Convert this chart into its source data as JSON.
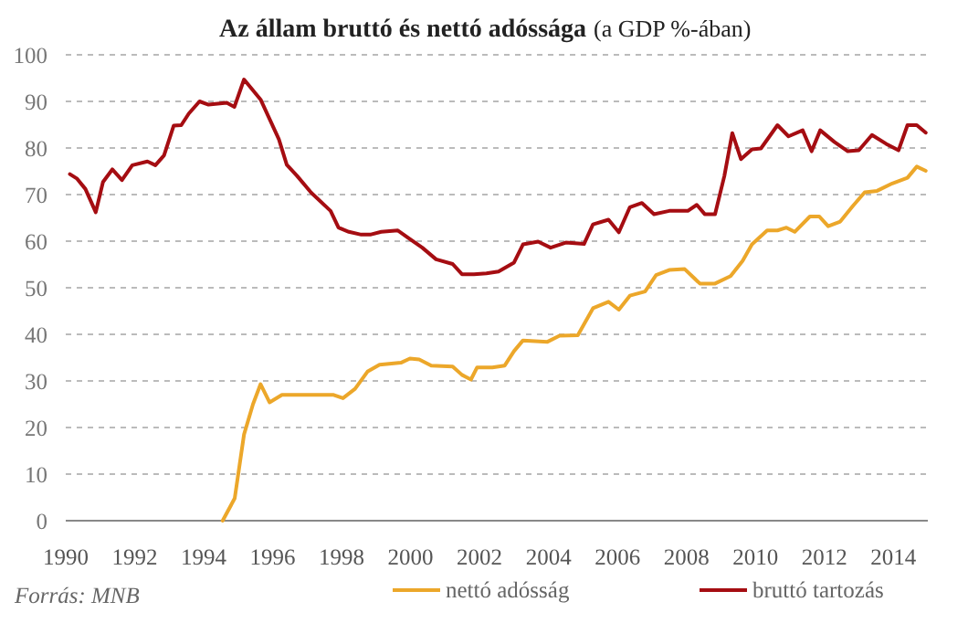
{
  "chart_data": {
    "type": "line",
    "title": "Az állam bruttó és nettó adóssága",
    "subtitle": "(a GDP %-ában)",
    "annotations": [
      "Forrás: MNB"
    ],
    "xlim": [
      1990,
      2015
    ],
    "xticks": [
      1990,
      1992,
      1994,
      1996,
      1998,
      2000,
      2002,
      2004,
      2006,
      2008,
      2010,
      2012,
      2014
    ],
    "ylim": [
      0,
      100
    ],
    "yticks": [
      0,
      10,
      20,
      30,
      40,
      50,
      60,
      70,
      80,
      90,
      100
    ],
    "grid": "y",
    "legend": "bottom",
    "line_style": "solid",
    "marker": "none",
    "series": [
      {
        "name": "nettó adósság",
        "color": "#eca72a",
        "x": [
          1994.55,
          1994.9,
          1995.17,
          1995.43,
          1995.65,
          1995.91,
          1996.27,
          1996.71,
          1997.77,
          1998.04,
          1998.39,
          1998.75,
          1999.1,
          1999.72,
          1999.98,
          2000.25,
          2000.6,
          2001.22,
          2001.49,
          2001.75,
          2001.93,
          2002.37,
          2002.73,
          2003,
          2003.26,
          2003.97,
          2004.32,
          2004.85,
          2005.29,
          2005.74,
          2006.04,
          2006.36,
          2006.8,
          2007.12,
          2007.5,
          2007.95,
          2008.39,
          2008.83,
          2009.28,
          2009.63,
          2009.9,
          2010.34,
          2010.64,
          2010.9,
          2011.14,
          2011.58,
          2011.85,
          2012.11,
          2012.46,
          2012.82,
          2013.17,
          2013.53,
          2013.97,
          2014.41,
          2014.68,
          2014.94
        ],
        "values": [
          0,
          4.8,
          18.5,
          25,
          29.3,
          25.4,
          27,
          27,
          27,
          26.3,
          28.3,
          32,
          33.5,
          33.9,
          34.8,
          34.6,
          33.3,
          33.1,
          31.3,
          30.3,
          32.9,
          32.9,
          33.3,
          36.4,
          38.7,
          38.4,
          39.7,
          39.8,
          45.6,
          47,
          45.3,
          48.3,
          49.2,
          52.7,
          53.8,
          54,
          50.9,
          50.9,
          52.5,
          55.8,
          59.3,
          62.3,
          62.3,
          62.9,
          62,
          65.3,
          65.3,
          63.2,
          64.2,
          67.5,
          70.5,
          70.8,
          72.4,
          73.6,
          76,
          75.1
        ]
      },
      {
        "name": "bruttó tartozás",
        "color": "#a50d12",
        "x": [
          1990.12,
          1990.33,
          1990.57,
          1990.87,
          1991.08,
          1991.35,
          1991.63,
          1991.93,
          1992.37,
          1992.6,
          1992.85,
          1993.13,
          1993.35,
          1993.57,
          1993.88,
          1994.14,
          1994.67,
          1994.89,
          1995.17,
          1995.65,
          1996.18,
          1996.41,
          1996.71,
          1997.12,
          1997.68,
          1997.91,
          1998.21,
          1998.57,
          1998.83,
          1999.15,
          1999.63,
          1999.93,
          2000.34,
          2000.74,
          2001.22,
          2001.49,
          2001.84,
          2002.2,
          2002.55,
          2003,
          2003.26,
          2003.7,
          2004.06,
          2004.5,
          2005.03,
          2005.29,
          2005.74,
          2006.04,
          2006.36,
          2006.71,
          2007.06,
          2007.5,
          2008.04,
          2008.3,
          2008.53,
          2008.83,
          2009.1,
          2009.33,
          2009.58,
          2009.9,
          2010.16,
          2010.64,
          2010.96,
          2011.37,
          2011.63,
          2011.88,
          2012.29,
          2012.68,
          2013,
          2013.38,
          2013.79,
          2014.15,
          2014.41,
          2014.68,
          2014.94
        ],
        "values": [
          74.4,
          73.4,
          71.2,
          66.2,
          72.7,
          75.4,
          73.1,
          76.3,
          77.1,
          76.3,
          78.4,
          84.8,
          84.9,
          87.4,
          90,
          89.3,
          89.7,
          88.8,
          94.7,
          90.4,
          81.9,
          76.4,
          74,
          70.4,
          66.5,
          62.9,
          62,
          61.4,
          61.4,
          62,
          62.3,
          60.7,
          58.6,
          56.1,
          55.1,
          52.9,
          52.9,
          53.1,
          53.5,
          55.4,
          59.3,
          59.9,
          58.6,
          59.7,
          59.4,
          63.6,
          64.6,
          61.9,
          67.3,
          68.2,
          65.8,
          66.5,
          66.5,
          67.8,
          65.8,
          65.8,
          74,
          83.2,
          77.6,
          79.7,
          79.9,
          84.9,
          82.5,
          83.8,
          79.3,
          83.8,
          81.3,
          79.3,
          79.5,
          82.8,
          80.9,
          79.5,
          84.9,
          84.9,
          83.3
        ]
      }
    ]
  }
}
